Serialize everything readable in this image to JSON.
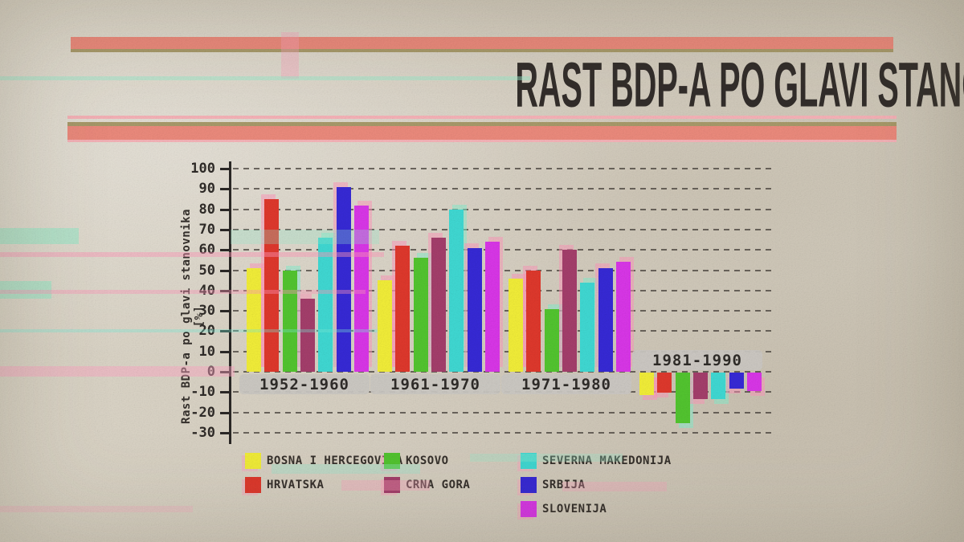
{
  "header": {
    "title": "RAST BDP-A PO GLAVI STANOVNIKA PO DECENIJAMA",
    "colors": {
      "stripe_salmon": "#ec8a7c",
      "stripe_olive": "#a89a6a",
      "stripe_pink": "#f6b3b8",
      "title_text": "#332e2b",
      "paper": "#d7d0c2"
    }
  },
  "chart_data": {
    "type": "bar",
    "title": "RAST BDP-A PO GLAVI STANOVNIKA PO DECENIJAMA",
    "xlabel": "",
    "ylabel": "Rast BDP-a po glavi stanovnika [%]",
    "ylim": [
      -30,
      100
    ],
    "yticks": [
      100,
      90,
      80,
      70,
      60,
      50,
      40,
      30,
      20,
      10,
      0,
      -10,
      -20,
      -30
    ],
    "grid": "horizontal-dashed",
    "legend_position": "bottom",
    "categories": [
      "1952-1960",
      "1961-1970",
      "1971-1980",
      "1981-1990"
    ],
    "series": [
      {
        "name": "BOSNA I HERCEGOVINA",
        "color": "#f2ee38",
        "values": [
          51,
          45,
          46,
          -11
        ]
      },
      {
        "name": "HRVATSKA",
        "color": "#df382c",
        "values": [
          85,
          62,
          50,
          -10
        ]
      },
      {
        "name": "KOSOVO",
        "color": "#52c52f",
        "values": [
          50,
          56,
          31,
          -25
        ]
      },
      {
        "name": "CRNA GORA",
        "color": "#a43e6b",
        "values": [
          36,
          66,
          60,
          -13
        ]
      },
      {
        "name": "SEVERNA MAKEDONIJA",
        "color": "#3fd9d3",
        "values": [
          66,
          80,
          44,
          -13
        ]
      },
      {
        "name": "SRBIJA",
        "color": "#3629d6",
        "values": [
          91,
          61,
          51,
          -8
        ]
      },
      {
        "name": "SLOVENIJA",
        "color": "#d936e8",
        "values": [
          82,
          64,
          54,
          -9
        ]
      }
    ],
    "legend_columns": [
      [
        0,
        1
      ],
      [
        2,
        3
      ],
      [
        4,
        5,
        6
      ]
    ]
  }
}
